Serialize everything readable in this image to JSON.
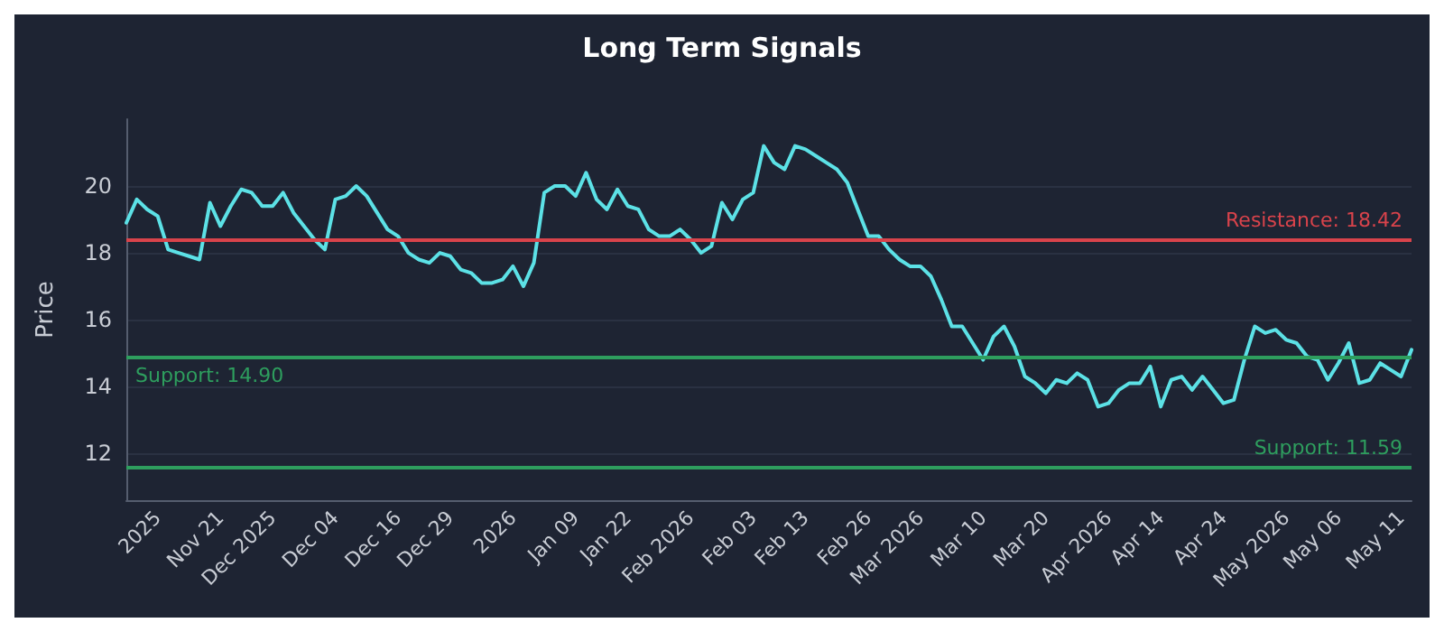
{
  "chart_data": {
    "type": "line",
    "title": "Long Term Signals",
    "ylabel": "Price",
    "categories": [
      null,
      null,
      null,
      "2025",
      null,
      null,
      null,
      null,
      null,
      "Nov 21",
      null,
      null,
      null,
      null,
      "Dec 2025",
      null,
      null,
      null,
      null,
      null,
      "Dec 04",
      null,
      null,
      null,
      null,
      null,
      "Dec 16",
      null,
      null,
      null,
      null,
      "Dec 29",
      null,
      null,
      null,
      null,
      null,
      "2026",
      null,
      null,
      null,
      null,
      null,
      "Jan 09",
      null,
      null,
      null,
      null,
      "Jan 22",
      null,
      null,
      null,
      null,
      null,
      "Feb 2026",
      null,
      null,
      null,
      null,
      null,
      "Feb 03",
      null,
      null,
      null,
      null,
      "Feb 13",
      null,
      null,
      null,
      null,
      null,
      "Feb 26",
      null,
      null,
      null,
      null,
      "Mar 2026",
      null,
      null,
      null,
      null,
      null,
      "Mar 10",
      null,
      null,
      null,
      null,
      null,
      "Mar 20",
      null,
      null,
      null,
      null,
      null,
      "Apr 2026",
      null,
      null,
      null,
      null,
      "Apr 14",
      null,
      null,
      null,
      null,
      null,
      "Apr 24",
      null,
      null,
      null,
      null,
      null,
      "May 2026",
      null,
      null,
      null,
      null,
      "May 06",
      null,
      null,
      null,
      null,
      null,
      "May 11",
      null
    ],
    "series": [
      {
        "color": "#5ce1e6",
        "values": [
          18.9,
          19.6,
          19.3,
          19.1,
          18.1,
          18.0,
          17.9,
          17.8,
          19.5,
          18.8,
          19.4,
          19.9,
          19.8,
          19.4,
          19.4,
          19.8,
          19.2,
          18.8,
          18.4,
          18.1,
          19.6,
          19.7,
          20.0,
          19.7,
          19.2,
          18.7,
          18.5,
          18.0,
          17.8,
          17.7,
          18.0,
          17.9,
          17.5,
          17.4,
          17.1,
          17.1,
          17.2,
          17.6,
          17.0,
          17.7,
          19.8,
          20.0,
          20.0,
          19.7,
          20.4,
          19.6,
          19.3,
          19.9,
          19.4,
          19.3,
          18.7,
          18.5,
          18.5,
          18.7,
          18.4,
          18.0,
          18.2,
          19.5,
          19.0,
          19.6,
          19.8,
          21.2,
          20.7,
          20.5,
          21.2,
          21.1,
          20.9,
          20.7,
          20.5,
          20.1,
          19.3,
          18.5,
          18.5,
          18.1,
          17.8,
          17.6,
          17.6,
          17.3,
          16.6,
          15.8,
          15.8,
          15.3,
          14.8,
          15.5,
          15.8,
          15.2,
          14.3,
          14.1,
          13.8,
          14.2,
          14.1,
          14.4,
          14.2,
          13.4,
          13.5,
          13.9,
          14.1,
          14.1,
          14.6,
          13.4,
          14.2,
          14.3,
          13.9,
          14.3,
          13.9,
          13.5,
          13.6,
          14.8,
          15.8,
          15.6,
          15.7,
          15.4,
          15.3,
          14.9,
          14.8,
          14.2,
          14.7,
          15.3,
          14.1,
          14.2,
          14.7,
          14.5,
          14.3,
          15.1
        ]
      }
    ],
    "ylim": [
      10.6,
      22.0
    ],
    "yticks": [
      12,
      14,
      16,
      18,
      20
    ],
    "grid": "y",
    "marker": "none",
    "line_style": "solid",
    "ref_lines": [
      {
        "axis": "y",
        "value": 18.42,
        "label": "Resistance: 18.42",
        "color": "#d9434b"
      },
      {
        "axis": "y",
        "value": 14.9,
        "label": "Support: 14.90",
        "color": "#2e9e5e"
      },
      {
        "axis": "y",
        "value": 11.59,
        "label": "Support: 11.59",
        "color": "#2e9e5e"
      }
    ]
  }
}
